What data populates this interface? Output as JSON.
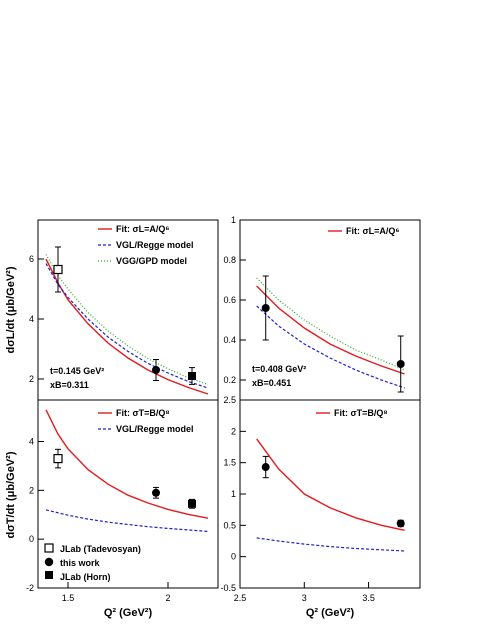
{
  "colors": {
    "fit": "#e41a1c",
    "vgl": "#1f1fd0",
    "vgg": "#22aa22",
    "frame": "#000000"
  },
  "labels": {
    "ylabel_top": "dσL/dt (μb/GeV²)",
    "ylabel_bottom": "dσT/dt (μb/GeV²)",
    "xlabel_left": "Q² (GeV²)",
    "xlabel_right": "Q² (GeV²)"
  },
  "legends": {
    "tl": [
      "Fit: σL=A/Q⁶",
      "VGL/Regge model",
      "VGG/GPD model"
    ],
    "tr": [
      "Fit: σL=A/Q⁶"
    ],
    "bl": [
      "Fit: σT=B/Q⁸",
      "VGL/Regge model"
    ],
    "br": [
      "Fit: σT=B/Q⁸"
    ],
    "markers": [
      "JLab (Tadevosyan)",
      "this work",
      "JLab (Horn)"
    ]
  },
  "annotations": {
    "tl_t": "t=0.145 GeV²",
    "tl_x": "xB=0.311",
    "tr_t": "t=0.408 GeV²",
    "tr_x": "xB=0.451"
  },
  "chart_data": [
    {
      "type": "line",
      "panel": "top-left",
      "ylabel": "dσL/dt (μb/GeV²)",
      "xlim": [
        1.35,
        2.25
      ],
      "ylim": [
        1.3,
        7.3
      ],
      "xticks": [],
      "yticks": [
        2,
        4,
        6
      ],
      "legend": "top-right",
      "series": [
        {
          "name": "Fit: σL=A/Q⁶",
          "style": "solid",
          "color": "fit",
          "x": [
            1.39,
            1.45,
            1.5,
            1.6,
            1.7,
            1.8,
            1.9,
            2.0,
            2.1,
            2.2
          ],
          "y": [
            6.0,
            5.2,
            4.64,
            3.84,
            3.2,
            2.7,
            2.3,
            1.98,
            1.72,
            1.5
          ]
        },
        {
          "name": "VGL/Regge model",
          "style": "dashed",
          "color": "vgl",
          "x": [
            1.39,
            1.45,
            1.5,
            1.6,
            1.7,
            1.8,
            1.9,
            2.0,
            2.1,
            2.2
          ],
          "y": [
            5.85,
            5.15,
            4.72,
            4.0,
            3.4,
            2.92,
            2.52,
            2.2,
            1.92,
            1.7
          ]
        },
        {
          "name": "VGG/GPD model",
          "style": "dotted",
          "color": "vgg",
          "x": [
            1.39,
            1.45,
            1.5,
            1.6,
            1.7,
            1.8,
            1.9,
            2.0,
            2.1,
            2.2
          ],
          "y": [
            6.15,
            5.45,
            5.0,
            4.22,
            3.6,
            3.1,
            2.68,
            2.34,
            2.05,
            1.82
          ]
        }
      ],
      "points": [
        {
          "marker": "open-square",
          "x": 1.45,
          "y": 5.65,
          "err": 0.75
        },
        {
          "marker": "circle",
          "x": 1.94,
          "y": 2.3,
          "err": 0.35
        },
        {
          "marker": "square",
          "x": 2.12,
          "y": 2.1,
          "err": 0.28
        }
      ]
    },
    {
      "type": "line",
      "panel": "top-right",
      "xlim": [
        2.5,
        3.9
      ],
      "ylim": [
        0.1,
        1.0
      ],
      "xticks": [],
      "yticks": [
        0.2,
        0.4,
        0.6,
        0.8,
        1
      ],
      "legend": "top-right",
      "series": [
        {
          "name": "Fit: σL=A/Q⁶",
          "style": "solid",
          "color": "fit",
          "x": [
            2.63,
            2.8,
            3.0,
            3.2,
            3.4,
            3.6,
            3.78
          ],
          "y": [
            0.67,
            0.56,
            0.46,
            0.38,
            0.32,
            0.27,
            0.23
          ]
        },
        {
          "name": "",
          "style": "dashed",
          "color": "vgl",
          "x": [
            2.63,
            2.8,
            3.0,
            3.2,
            3.4,
            3.6,
            3.78
          ],
          "y": [
            0.57,
            0.47,
            0.38,
            0.31,
            0.25,
            0.2,
            0.16
          ]
        },
        {
          "name": "",
          "style": "dotted",
          "color": "vgg",
          "x": [
            2.63,
            2.8,
            3.0,
            3.2,
            3.4,
            3.6,
            3.78
          ],
          "y": [
            0.71,
            0.6,
            0.5,
            0.42,
            0.35,
            0.3,
            0.25
          ]
        }
      ],
      "points": [
        {
          "marker": "circle",
          "x": 2.7,
          "y": 0.56,
          "err": 0.16
        },
        {
          "marker": "circle",
          "x": 3.75,
          "y": 0.28,
          "err": 0.14
        }
      ]
    },
    {
      "type": "line",
      "panel": "bottom-left",
      "ylabel": "dσT/dt (μb/GeV²)",
      "xlabel": "Q² (GeV²)",
      "xlim": [
        1.35,
        2.25
      ],
      "ylim": [
        -2,
        5.7
      ],
      "xticks": [
        1.5,
        2
      ],
      "yticks": [
        -2,
        0,
        2,
        4
      ],
      "legend": "top-right",
      "series": [
        {
          "name": "Fit: σT=B/Q⁸",
          "style": "solid",
          "color": "fit",
          "x": [
            1.39,
            1.45,
            1.5,
            1.6,
            1.7,
            1.8,
            1.9,
            2.0,
            2.1,
            2.2
          ],
          "y": [
            5.3,
            4.3,
            3.7,
            2.85,
            2.25,
            1.8,
            1.48,
            1.22,
            1.02,
            0.86
          ]
        },
        {
          "name": "VGL/Regge model",
          "style": "dashed",
          "color": "vgl",
          "x": [
            1.39,
            1.5,
            1.6,
            1.7,
            1.8,
            1.9,
            2.0,
            2.1,
            2.2
          ],
          "y": [
            1.2,
            0.98,
            0.82,
            0.7,
            0.6,
            0.51,
            0.44,
            0.38,
            0.32
          ]
        }
      ],
      "points": [
        {
          "marker": "open-square",
          "x": 1.45,
          "y": 3.3,
          "err": 0.38
        },
        {
          "marker": "circle",
          "x": 1.94,
          "y": 1.9,
          "err": 0.22
        },
        {
          "marker": "square",
          "x": 2.12,
          "y": 1.45,
          "err": 0.18
        }
      ]
    },
    {
      "type": "line",
      "panel": "bottom-right",
      "xlabel": "Q² (GeV²)",
      "xlim": [
        2.5,
        3.9
      ],
      "ylim": [
        -0.5,
        2.5
      ],
      "xticks": [
        2.5,
        3,
        3.5
      ],
      "yticks": [
        -0.5,
        0,
        0.5,
        1,
        1.5,
        2,
        2.5
      ],
      "legend": "top-right",
      "series": [
        {
          "name": "Fit: σT=B/Q⁸",
          "style": "solid",
          "color": "fit",
          "x": [
            2.63,
            2.8,
            3.0,
            3.2,
            3.4,
            3.6,
            3.78
          ],
          "y": [
            1.88,
            1.4,
            1.0,
            0.78,
            0.62,
            0.5,
            0.42
          ]
        },
        {
          "name": "",
          "style": "dashed",
          "color": "vgl",
          "x": [
            2.63,
            2.8,
            3.0,
            3.2,
            3.4,
            3.6,
            3.78
          ],
          "y": [
            0.3,
            0.25,
            0.2,
            0.16,
            0.13,
            0.11,
            0.09
          ]
        }
      ],
      "points": [
        {
          "marker": "circle",
          "x": 2.7,
          "y": 1.43,
          "err": 0.17
        },
        {
          "marker": "circle",
          "x": 3.75,
          "y": 0.53,
          "err": 0.05
        }
      ]
    }
  ]
}
